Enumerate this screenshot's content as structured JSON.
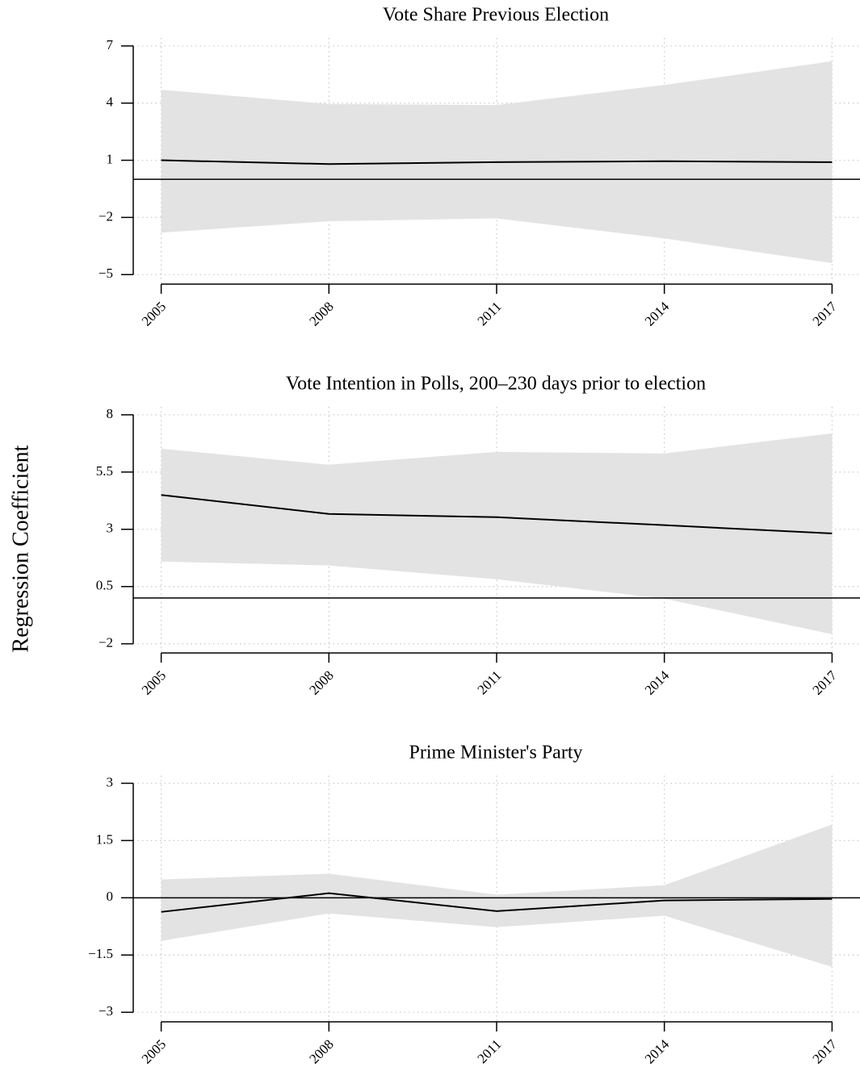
{
  "y_label": "Regression Coefficient",
  "chart_data": [
    {
      "type": "line",
      "title": "Vote Share Previous Election",
      "x": [
        2005,
        2008,
        2011,
        2014,
        2017
      ],
      "values": [
        1.0,
        0.8,
        0.9,
        0.95,
        0.9
      ],
      "ci_lower": [
        -2.8,
        -2.2,
        -2.05,
        -3.1,
        -4.4
      ],
      "ci_upper": [
        4.7,
        3.95,
        3.9,
        4.95,
        6.2
      ],
      "color": "#000000",
      "band_color": "#e3e3e3",
      "reference_line": 0,
      "xlim": [
        2004.5,
        2017.5
      ],
      "xticks": [
        2005,
        2008,
        2011,
        2014,
        2017
      ],
      "ylim": [
        -5.5,
        7.42
      ],
      "yticks": [
        {
          "value": -5,
          "label": "−5"
        },
        {
          "value": -2,
          "label": "−2"
        },
        1,
        4,
        7
      ],
      "grid": true
    },
    {
      "type": "line",
      "title": "Vote Intention in Polls, 200–230 days prior to election",
      "x": [
        2005,
        2008,
        2011,
        2014,
        2017
      ],
      "values": [
        4.5,
        3.67,
        3.53,
        3.18,
        2.82
      ],
      "ci_lower": [
        1.59,
        1.42,
        0.82,
        -0.03,
        -1.58
      ],
      "ci_upper": [
        6.52,
        5.82,
        6.38,
        6.31,
        7.19
      ],
      "color": "#000000",
      "band_color": "#e3e3e3",
      "reference_line": 0,
      "xlim": [
        2004.5,
        2017.5
      ],
      "xticks": [
        2005,
        2008,
        2011,
        2014,
        2017
      ],
      "ylim": [
        -2.4,
        8.35
      ],
      "yticks": [
        {
          "value": -2,
          "label": "−2"
        },
        0.5,
        3,
        5.5,
        8
      ],
      "grid": true
    },
    {
      "type": "line",
      "title": "Prime Minister's Party",
      "x": [
        2005,
        2008,
        2011,
        2014,
        2017
      ],
      "values": [
        -0.37,
        0.12,
        -0.35,
        -0.07,
        -0.03
      ],
      "ci_lower": [
        -1.13,
        -0.41,
        -0.77,
        -0.47,
        -1.81
      ],
      "ci_upper": [
        0.48,
        0.63,
        0.08,
        0.33,
        1.92
      ],
      "color": "#000000",
      "band_color": "#e3e3e3",
      "reference_line": 0,
      "xlim": [
        2004.5,
        2017.5
      ],
      "xticks": [
        2005,
        2008,
        2011,
        2014,
        2017
      ],
      "ylim": [
        -3.25,
        3.2
      ],
      "yticks": [
        {
          "value": -3,
          "label": "−3"
        },
        {
          "value": -1.5,
          "label": "−1.5"
        },
        0,
        1.5,
        3
      ],
      "grid": true
    }
  ]
}
